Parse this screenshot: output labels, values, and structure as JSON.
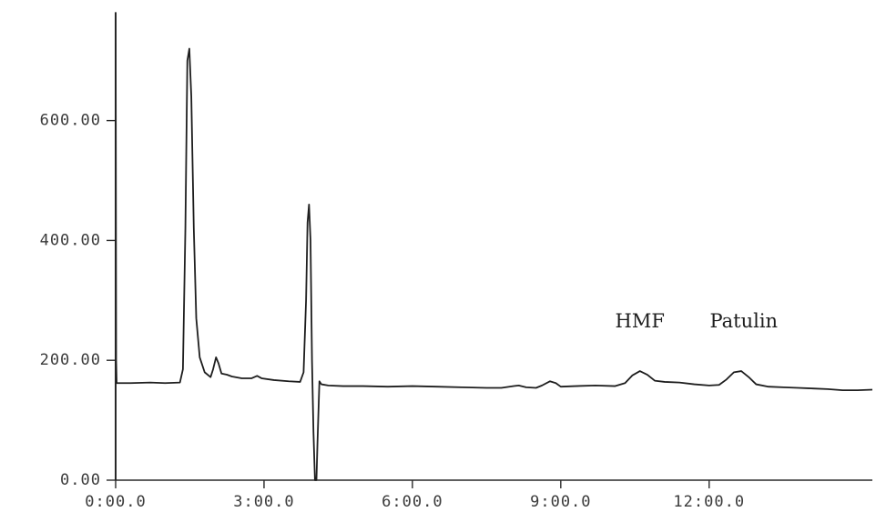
{
  "chart_data": {
    "type": "line",
    "title": "",
    "xlabel": "",
    "ylabel": "",
    "x_tick_labels": [
      "0:00.0",
      "3:00.0",
      "6:00.0",
      "9:00.0",
      "12:00.0"
    ],
    "x_tick_values_min": [
      0,
      3,
      6,
      9,
      12
    ],
    "y_tick_labels": [
      "0.00",
      "200.00",
      "400.00",
      "600.00"
    ],
    "y_tick_values": [
      0,
      200,
      400,
      600
    ],
    "xlim_min": [
      0,
      15.3
    ],
    "ylim": [
      0,
      780
    ],
    "grid": false,
    "annotations": [
      {
        "text": "HMF",
        "x_min": 10.6,
        "y": 255
      },
      {
        "text": "Patulin",
        "x_min": 12.7,
        "y": 255
      }
    ],
    "series": [
      {
        "points": [
          [
            0.0,
            0
          ],
          [
            0.0,
            780
          ],
          [
            0.01,
            200
          ],
          [
            0.02,
            162
          ],
          [
            0.3,
            162
          ],
          [
            0.7,
            163
          ],
          [
            1.0,
            162
          ],
          [
            1.3,
            163
          ],
          [
            1.36,
            185
          ],
          [
            1.41,
            420
          ],
          [
            1.45,
            700
          ],
          [
            1.49,
            720
          ],
          [
            1.53,
            640
          ],
          [
            1.58,
            420
          ],
          [
            1.63,
            270
          ],
          [
            1.7,
            205
          ],
          [
            1.8,
            180
          ],
          [
            1.92,
            172
          ],
          [
            1.97,
            185
          ],
          [
            2.03,
            205
          ],
          [
            2.08,
            195
          ],
          [
            2.14,
            178
          ],
          [
            2.25,
            176
          ],
          [
            2.35,
            173
          ],
          [
            2.55,
            170
          ],
          [
            2.75,
            170
          ],
          [
            2.86,
            174
          ],
          [
            2.95,
            170
          ],
          [
            3.2,
            167
          ],
          [
            3.5,
            165
          ],
          [
            3.73,
            164
          ],
          [
            3.8,
            180
          ],
          [
            3.85,
            300
          ],
          [
            3.88,
            430
          ],
          [
            3.91,
            460
          ],
          [
            3.94,
            400
          ],
          [
            3.97,
            200
          ],
          [
            4.0,
            80
          ],
          [
            4.03,
            0
          ],
          [
            4.06,
            0
          ],
          [
            4.08,
            60
          ],
          [
            4.12,
            165
          ],
          [
            4.16,
            160
          ],
          [
            4.3,
            158
          ],
          [
            4.6,
            157
          ],
          [
            5.0,
            157
          ],
          [
            5.5,
            156
          ],
          [
            6.0,
            157
          ],
          [
            6.5,
            156
          ],
          [
            7.0,
            155
          ],
          [
            7.5,
            154
          ],
          [
            7.8,
            154
          ],
          [
            8.05,
            157
          ],
          [
            8.15,
            158
          ],
          [
            8.3,
            155
          ],
          [
            8.5,
            154
          ],
          [
            8.62,
            158
          ],
          [
            8.78,
            165
          ],
          [
            8.9,
            162
          ],
          [
            9.0,
            156
          ],
          [
            9.3,
            157
          ],
          [
            9.7,
            158
          ],
          [
            10.1,
            157
          ],
          [
            10.3,
            162
          ],
          [
            10.45,
            175
          ],
          [
            10.6,
            182
          ],
          [
            10.75,
            176
          ],
          [
            10.9,
            166
          ],
          [
            11.1,
            164
          ],
          [
            11.4,
            163
          ],
          [
            11.7,
            160
          ],
          [
            12.0,
            158
          ],
          [
            12.2,
            159
          ],
          [
            12.35,
            168
          ],
          [
            12.5,
            180
          ],
          [
            12.65,
            182
          ],
          [
            12.8,
            172
          ],
          [
            12.95,
            160
          ],
          [
            13.2,
            156
          ],
          [
            13.5,
            155
          ],
          [
            13.8,
            154
          ],
          [
            14.1,
            153
          ],
          [
            14.4,
            152
          ],
          [
            14.7,
            150
          ],
          [
            15.0,
            150
          ],
          [
            15.3,
            151
          ]
        ]
      }
    ],
    "colors": {
      "trace": "#1e1e1e",
      "axis": "#2a2a2a",
      "text": "#3a3a3a"
    }
  }
}
